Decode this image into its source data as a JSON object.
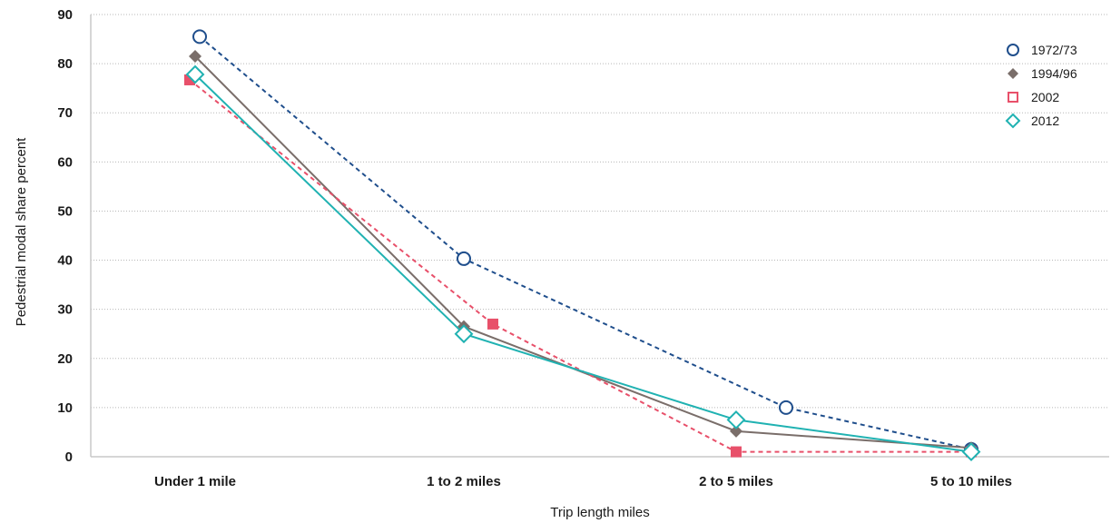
{
  "chart_data": {
    "type": "line",
    "categories": [
      "Under 1 mile",
      "1 to 2 miles",
      "2 to 5 miles",
      "5 to 10 miles"
    ],
    "xlabel": "Trip length miles",
    "ylabel": "Pedestrial modal share percent",
    "ylim": [
      0,
      90
    ],
    "yticks": [
      "0",
      "10",
      "20",
      "30",
      "40",
      "50",
      "60",
      "70",
      "80",
      "90"
    ],
    "grid": true,
    "legend_position": "top-right",
    "series": [
      {
        "name": "1972/73",
        "values": [
          85.5,
          40.3,
          10,
          1.5
        ],
        "color": "#1f4e8c",
        "line": "dashed",
        "marker": "open-circle"
      },
      {
        "name": "1994/96",
        "values": [
          81.5,
          26.5,
          5.2,
          1.8
        ],
        "color": "#7a6e6a",
        "line": "solid",
        "marker": "filled-diamond"
      },
      {
        "name": "2002",
        "values": [
          76.7,
          27,
          1,
          1
        ],
        "color": "#e8506a",
        "line": "dashed",
        "marker": "filled-square",
        "legend_marker": "open-square"
      },
      {
        "name": "2012",
        "values": [
          77.8,
          25,
          7.5,
          1
        ],
        "color": "#20b2b2",
        "line": "solid",
        "marker": "open-diamond"
      }
    ]
  }
}
